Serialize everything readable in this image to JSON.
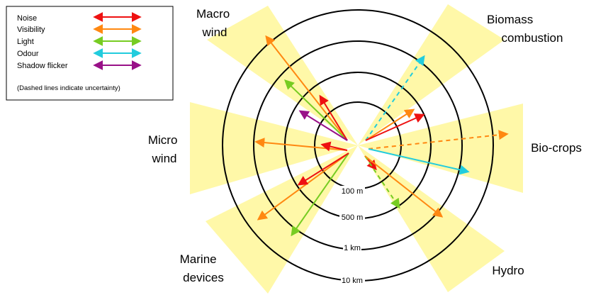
{
  "legend": {
    "items": [
      {
        "label": "Noise",
        "color": "#ee1111"
      },
      {
        "label": "Visibility",
        "color": "#ff8811"
      },
      {
        "label": "Light",
        "color": "#77cc22"
      },
      {
        "label": "Odour",
        "color": "#22ccdd"
      },
      {
        "label": "Shadow flicker",
        "color": "#991188"
      }
    ],
    "note": "(Dashed lines indicate uncertainty)"
  },
  "rings": [
    "100 m",
    "500 m",
    "1 km",
    "10 km"
  ],
  "sectors": {
    "macro_wind": [
      "Macro",
      "wind"
    ],
    "micro_wind": [
      "Micro",
      "wind"
    ],
    "marine_devices": [
      "Marine",
      "devices"
    ],
    "biomass_combustion": [
      "Biomass",
      "combustion"
    ],
    "bio_crops": [
      "Bio-crops"
    ],
    "hydro": [
      "Hydro"
    ]
  },
  "colors": {
    "sector_fill": "#fff8a8",
    "noise": "#ee1111",
    "visibility": "#ff8811",
    "light": "#77cc22",
    "odour": "#22ccdd",
    "shadow_flicker": "#991188"
  }
}
